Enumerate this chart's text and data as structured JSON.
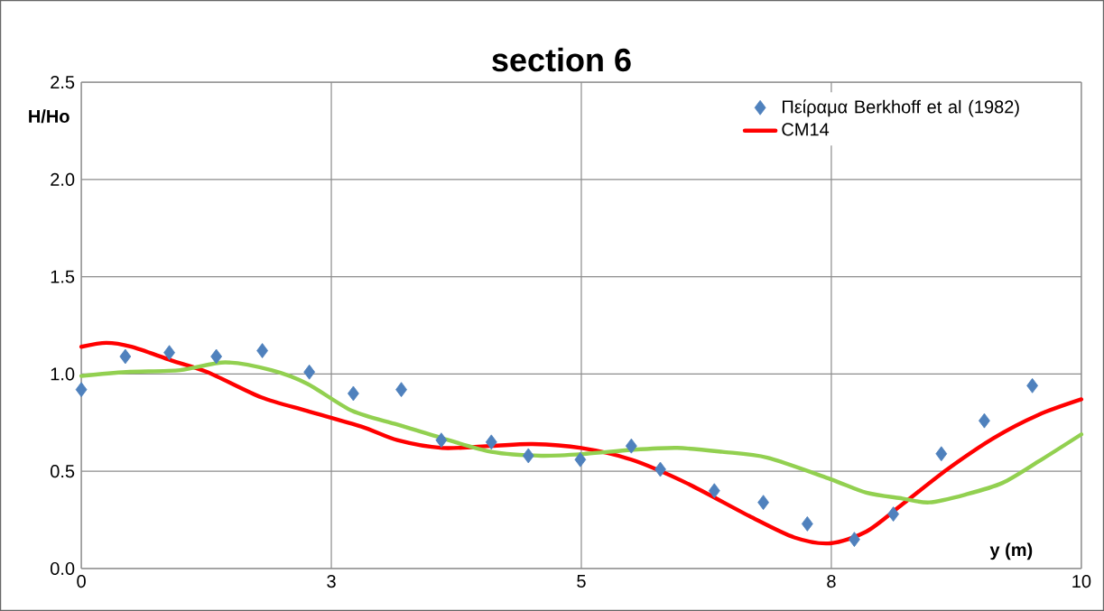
{
  "chart_data": {
    "type": "line",
    "title": "section 6",
    "xlabel": "y (m)",
    "ylabel": "H/Ho",
    "xlim": [
      0,
      10
    ],
    "ylim": [
      0,
      2.5
    ],
    "xticks": [
      0,
      {
        "value": 2.5,
        "label": "3"
      },
      5,
      {
        "value": 7.5,
        "label": "8"
      },
      10
    ],
    "yticks": [
      {
        "value": 0,
        "label": "0.0"
      },
      {
        "value": 0.5,
        "label": "0.5"
      },
      {
        "value": 1,
        "label": "1.0"
      },
      {
        "value": 1.5,
        "label": "1.5"
      },
      {
        "value": 2,
        "label": "2.0"
      },
      {
        "value": 2.5,
        "label": "2.5"
      }
    ],
    "grid": true,
    "legend": "top right",
    "series": [
      {
        "name": "Πείραμα Berkhoff et al (1982)",
        "type": "scatter",
        "marker": "diamond",
        "color": "#4f81bd",
        "x": [
          0,
          0.44,
          0.88,
          1.35,
          1.81,
          2.28,
          2.72,
          3.2,
          3.6,
          4.1,
          4.47,
          4.99,
          5.5,
          5.79,
          6.33,
          6.82,
          7.26,
          7.73,
          8.12,
          8.6,
          9.03,
          9.51
        ],
        "values": [
          0.92,
          1.09,
          1.11,
          1.09,
          1.12,
          1.01,
          0.9,
          0.92,
          0.66,
          0.65,
          0.58,
          0.56,
          0.63,
          0.51,
          0.4,
          0.34,
          0.23,
          0.15,
          0.28,
          0.59,
          0.76,
          0.94
        ]
      },
      {
        "name": "CM14",
        "color": "#ff0000",
        "x": [
          0,
          0.25,
          0.5,
          0.9,
          1.26,
          1.8,
          2.26,
          2.8,
          3.16,
          3.61,
          4.1,
          4.51,
          5,
          5.5,
          6.05,
          6.68,
          7.13,
          7.49,
          7.85,
          8.21,
          8.66,
          9.12,
          9.57,
          10
        ],
        "values": [
          1.14,
          1.16,
          1.14,
          1.07,
          1.01,
          0.88,
          0.81,
          0.73,
          0.66,
          0.62,
          0.63,
          0.64,
          0.62,
          0.56,
          0.44,
          0.27,
          0.16,
          0.13,
          0.19,
          0.33,
          0.51,
          0.67,
          0.79,
          0.87
        ]
      },
      {
        "color": "#92d050",
        "x": [
          0,
          0.45,
          0.99,
          1.44,
          1.9,
          2.26,
          2.71,
          3.16,
          3.61,
          4.1,
          4.6,
          5.05,
          5.5,
          5.96,
          6.41,
          6.86,
          7.49,
          7.85,
          8.21,
          8.48,
          8.84,
          9.21,
          9.57,
          10
        ],
        "values": [
          0.99,
          1.01,
          1.02,
          1.06,
          1.02,
          0.95,
          0.81,
          0.74,
          0.67,
          0.6,
          0.58,
          0.59,
          0.61,
          0.62,
          0.6,
          0.57,
          0.46,
          0.39,
          0.36,
          0.34,
          0.38,
          0.44,
          0.55,
          0.69
        ]
      }
    ]
  }
}
